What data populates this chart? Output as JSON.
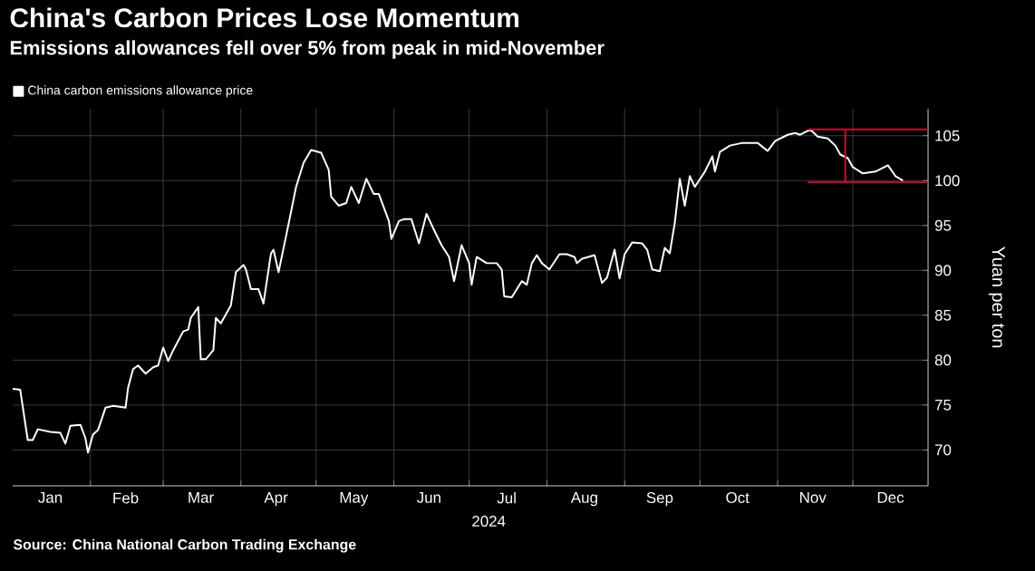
{
  "chart_data": {
    "type": "line",
    "title": "China's Carbon Prices Lose Momentum",
    "subtitle": "Emissions allowances fell over 5% from peak in mid-November",
    "xlabel": "2024",
    "ylabel": "Yuan per ton",
    "annotations": [
      "Source: China National Carbon Trading Exchange"
    ],
    "xlim": [
      "2024-01-01",
      "2024-12-31"
    ],
    "ylim": [
      66,
      108
    ],
    "yticks": [
      70,
      75,
      80,
      85,
      90,
      95,
      100,
      105
    ],
    "xticks": [
      {
        "value": "2024-01-16",
        "label": "Jan"
      },
      {
        "value": "2024-02-15",
        "label": "Feb"
      },
      {
        "value": "2024-03-16",
        "label": "Mar"
      },
      {
        "value": "2024-04-15",
        "label": "Apr"
      },
      {
        "value": "2024-05-16",
        "label": "May"
      },
      {
        "value": "2024-06-15",
        "label": "Jun"
      },
      {
        "value": "2024-07-16",
        "label": "Jul"
      },
      {
        "value": "2024-08-16",
        "label": "Aug"
      },
      {
        "value": "2024-09-15",
        "label": "Sep"
      },
      {
        "value": "2024-10-16",
        "label": "Oct"
      },
      {
        "value": "2024-11-15",
        "label": "Nov"
      },
      {
        "value": "2024-12-16",
        "label": "Dec"
      },
      {
        "value": "2024-02-01",
        "label": null
      },
      {
        "value": "2024-03-01",
        "label": null
      },
      {
        "value": "2024-04-01",
        "label": null
      },
      {
        "value": "2024-05-01",
        "label": null
      },
      {
        "value": "2024-06-01",
        "label": null
      },
      {
        "value": "2024-07-01",
        "label": null
      },
      {
        "value": "2024-08-01",
        "label": null
      },
      {
        "value": "2024-09-01",
        "label": null
      },
      {
        "value": "2024-10-01",
        "label": null
      },
      {
        "value": "2024-11-01",
        "label": null
      },
      {
        "value": "2024-12-01",
        "label": null
      }
    ],
    "grid": true,
    "legend": "top left",
    "series": [
      {
        "name": "China carbon emissions allowance price",
        "color": "#ffffff",
        "x": [
          "2024-01-01",
          "2024-01-04",
          "2024-01-07",
          "2024-01-09",
          "2024-01-11",
          "2024-01-16",
          "2024-01-20",
          "2024-01-22",
          "2024-01-24",
          "2024-01-28",
          "2024-01-30",
          "2024-01-31",
          "2024-02-02",
          "2024-02-04",
          "2024-02-07",
          "2024-02-10",
          "2024-02-15",
          "2024-02-16",
          "2024-02-18",
          "2024-02-20",
          "2024-02-23",
          "2024-02-26",
          "2024-02-28",
          "2024-03-01",
          "2024-03-03",
          "2024-03-05",
          "2024-03-09",
          "2024-03-11",
          "2024-03-12",
          "2024-03-15",
          "2024-03-16",
          "2024-03-18",
          "2024-03-21",
          "2024-03-22",
          "2024-03-24",
          "2024-03-28",
          "2024-03-30",
          "2024-04-02",
          "2024-04-03",
          "2024-04-05",
          "2024-04-08",
          "2024-04-10",
          "2024-04-13",
          "2024-04-14",
          "2024-04-16",
          "2024-04-19",
          "2024-04-23",
          "2024-04-26",
          "2024-04-29",
          "2024-05-03",
          "2024-05-06",
          "2024-05-07",
          "2024-05-10",
          "2024-05-13",
          "2024-05-15",
          "2024-05-18",
          "2024-05-21",
          "2024-05-24",
          "2024-05-26",
          "2024-05-30",
          "2024-05-31",
          "2024-06-03",
          "2024-06-05",
          "2024-06-08",
          "2024-06-11",
          "2024-06-14",
          "2024-06-17",
          "2024-06-20",
          "2024-06-23",
          "2024-06-25",
          "2024-06-28",
          "2024-07-01",
          "2024-07-02",
          "2024-07-04",
          "2024-07-08",
          "2024-07-12",
          "2024-07-14",
          "2024-07-15",
          "2024-07-18",
          "2024-07-22",
          "2024-07-24",
          "2024-07-26",
          "2024-07-28",
          "2024-07-30",
          "2024-08-02",
          "2024-08-06",
          "2024-08-09",
          "2024-08-12",
          "2024-08-13",
          "2024-08-15",
          "2024-08-20",
          "2024-08-23",
          "2024-08-25",
          "2024-08-28",
          "2024-08-30",
          "2024-09-01",
          "2024-09-04",
          "2024-09-08",
          "2024-09-10",
          "2024-09-12",
          "2024-09-15",
          "2024-09-17",
          "2024-09-19",
          "2024-09-21",
          "2024-09-23",
          "2024-09-25",
          "2024-09-27",
          "2024-09-29",
          "2024-10-03",
          "2024-10-06",
          "2024-10-07",
          "2024-10-09",
          "2024-10-13",
          "2024-10-18",
          "2024-10-24",
          "2024-10-28",
          "2024-10-31",
          "2024-11-05",
          "2024-11-08",
          "2024-11-10",
          "2024-11-14",
          "2024-11-17",
          "2024-11-21",
          "2024-11-24",
          "2024-11-26",
          "2024-11-29",
          "2024-12-01",
          "2024-12-05",
          "2024-12-10",
          "2024-12-15",
          "2024-12-18",
          "2024-12-21"
        ],
        "values": [
          76.8,
          76.7,
          71.1,
          71.1,
          72.3,
          72.0,
          71.9,
          70.7,
          72.7,
          72.8,
          71.3,
          69.7,
          71.7,
          72.2,
          74.7,
          74.9,
          74.7,
          76.9,
          79.0,
          79.4,
          78.5,
          79.2,
          79.4,
          81.4,
          79.9,
          81.1,
          83.2,
          83.4,
          84.7,
          85.9,
          80.1,
          80.1,
          81.1,
          84.7,
          84.1,
          86.1,
          89.8,
          90.6,
          90.1,
          87.9,
          87.9,
          86.3,
          91.9,
          92.3,
          89.8,
          93.8,
          99.3,
          102.0,
          103.4,
          103.1,
          101.2,
          98.2,
          97.2,
          97.5,
          99.3,
          97.5,
          100.2,
          98.5,
          98.5,
          95.5,
          93.5,
          95.5,
          95.7,
          95.7,
          93.0,
          96.3,
          94.5,
          92.8,
          91.5,
          88.8,
          92.8,
          90.8,
          88.4,
          91.5,
          90.8,
          90.8,
          90.1,
          87.1,
          87.0,
          88.8,
          88.4,
          90.8,
          91.7,
          90.8,
          90.1,
          91.8,
          91.8,
          91.5,
          90.8,
          91.3,
          91.7,
          88.6,
          89.2,
          92.3,
          89.1,
          91.8,
          93.1,
          93.0,
          92.3,
          90.1,
          89.9,
          92.5,
          91.9,
          95.3,
          100.2,
          97.2,
          100.5,
          99.3,
          101.0,
          102.7,
          101.0,
          103.2,
          103.9,
          104.2,
          104.2,
          103.3,
          104.4,
          105.1,
          105.3,
          105.1,
          105.7,
          104.9,
          104.7,
          103.9,
          102.9,
          102.5,
          101.5,
          100.8,
          101.0,
          101.7,
          100.5,
          100.0
        ]
      },
      {
        "color": "#c8102e",
        "x": [
          "2024-11-13",
          "2024-12-31"
        ],
        "values": [
          105.7,
          105.7
        ]
      },
      {
        "color": "#c8102e",
        "x": [
          "2024-11-13",
          "2024-12-31"
        ],
        "values": [
          99.8,
          99.8
        ]
      },
      {
        "color": "#c8102e",
        "x": [
          "2024-11-28",
          "2024-11-28"
        ],
        "values": [
          105.7,
          99.8
        ]
      }
    ]
  }
}
